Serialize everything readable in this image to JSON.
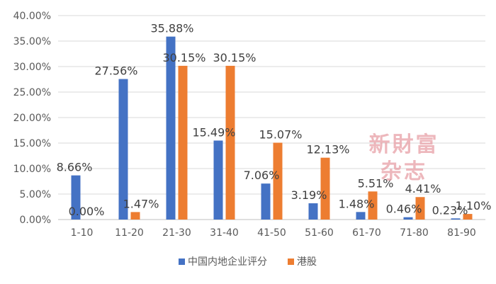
{
  "chart_data": {
    "type": "bar",
    "categories": [
      "1-10",
      "11-20",
      "21-30",
      "31-40",
      "41-50",
      "51-60",
      "61-70",
      "71-80",
      "81-90"
    ],
    "series": [
      {
        "name": "中国内地企业评分",
        "color": "#4472C4",
        "values": [
          8.66,
          27.56,
          35.88,
          15.49,
          7.06,
          3.19,
          1.48,
          0.46,
          0.23
        ],
        "labels": [
          "8.66%",
          "27.56%",
          "35.88%",
          "15.49%",
          "7.06%",
          "3.19%",
          "1.48%",
          "0.46%",
          "0.23%"
        ]
      },
      {
        "name": "港股",
        "color": "#ED7D31",
        "values": [
          0.0,
          1.47,
          30.15,
          30.15,
          15.07,
          12.13,
          5.51,
          4.41,
          1.1
        ],
        "labels": [
          "0.00%",
          "1.47%",
          "30.15%",
          "30.15%",
          "15.07%",
          "12.13%",
          "5.51%",
          "4.41%",
          "1.10%"
        ]
      }
    ],
    "yticks": [
      "0.00%",
      "5.00%",
      "10.00%",
      "15.00%",
      "20.00%",
      "25.00%",
      "30.00%",
      "35.00%",
      "40.00%"
    ],
    "ylim": [
      0,
      40
    ],
    "grid": true,
    "legend": "bottom-center"
  },
  "watermark": {
    "line1": "新財富",
    "line2": "杂志"
  }
}
